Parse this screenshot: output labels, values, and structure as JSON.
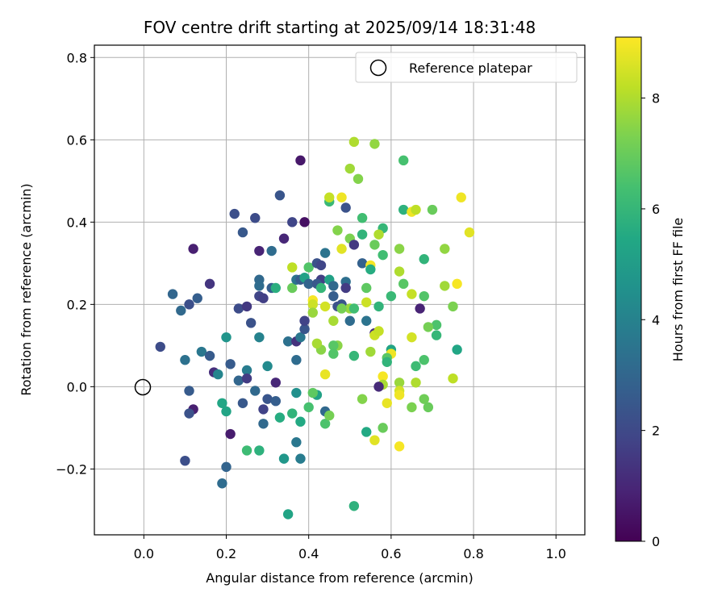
{
  "chart_data": {
    "type": "scatter",
    "title": "FOV centre drift starting at 2025/09/14 18:31:48",
    "xlabel": "Angular distance from reference (arcmin)",
    "ylabel": "Rotation from reference (arcmin)",
    "xlim": [
      -0.12,
      1.07
    ],
    "ylim": [
      -0.36,
      0.83
    ],
    "x_ticks": [
      0.0,
      0.2,
      0.4,
      0.6,
      0.8,
      1.0
    ],
    "x_tick_labels": [
      "0.0",
      "0.2",
      "0.4",
      "0.6",
      "0.8",
      "1.0"
    ],
    "y_ticks": [
      -0.2,
      0.0,
      0.2,
      0.4,
      0.6,
      0.8
    ],
    "y_tick_labels": [
      "−0.2",
      "0.0",
      "0.2",
      "0.4",
      "0.6",
      "0.8"
    ],
    "grid": true,
    "legend": {
      "placement": "top-right",
      "entries": [
        "Reference platepar"
      ]
    },
    "reference_point": {
      "x": 0.0,
      "y": 0.0,
      "label": "Reference platepar"
    },
    "colorbar": {
      "label": "Hours from first FF file",
      "range": [
        0,
        9.1
      ],
      "ticks": [
        0,
        2,
        4,
        6,
        8
      ],
      "tick_labels": [
        "0",
        "2",
        "4",
        "6",
        "8"
      ],
      "colormap": "viridis"
    },
    "points": [
      [
        0.12,
        0.335,
        0.8
      ],
      [
        0.22,
        0.42,
        2.2
      ],
      [
        0.27,
        0.41,
        2.1
      ],
      [
        0.33,
        0.465,
        2.4
      ],
      [
        0.38,
        0.55,
        0.6
      ],
      [
        0.39,
        0.4,
        0.4
      ],
      [
        0.36,
        0.4,
        1.9
      ],
      [
        0.34,
        0.36,
        1.0
      ],
      [
        0.31,
        0.33,
        3.2
      ],
      [
        0.28,
        0.33,
        0.9
      ],
      [
        0.24,
        0.375,
        2.5
      ],
      [
        0.16,
        0.25,
        1.4
      ],
      [
        0.07,
        0.225,
        3.0
      ],
      [
        0.13,
        0.215,
        2.7
      ],
      [
        0.11,
        0.2,
        2.2
      ],
      [
        0.09,
        0.185,
        3.1
      ],
      [
        0.04,
        0.097,
        2.1
      ],
      [
        0.1,
        0.065,
        3.4
      ],
      [
        0.14,
        0.085,
        3.6
      ],
      [
        0.16,
        0.075,
        2.6
      ],
      [
        0.2,
        0.12,
        4.7
      ],
      [
        0.21,
        0.055,
        2.6
      ],
      [
        0.17,
        0.035,
        1.2
      ],
      [
        0.18,
        0.03,
        4.1
      ],
      [
        0.11,
        -0.01,
        2.6
      ],
      [
        0.12,
        -0.055,
        0.8
      ],
      [
        0.11,
        -0.065,
        2.3
      ],
      [
        0.1,
        -0.18,
        2.2
      ],
      [
        0.2,
        -0.195,
        2.9
      ],
      [
        0.19,
        -0.235,
        3.2
      ],
      [
        0.21,
        -0.115,
        0.7
      ],
      [
        0.19,
        -0.04,
        5.4
      ],
      [
        0.2,
        -0.06,
        5.3
      ],
      [
        0.24,
        -0.04,
        2.5
      ],
      [
        0.23,
        0.015,
        3.0
      ],
      [
        0.25,
        0.04,
        3.8
      ],
      [
        0.25,
        0.02,
        1.6
      ],
      [
        0.27,
        -0.01,
        3.1
      ],
      [
        0.28,
        -0.155,
        5.8
      ],
      [
        0.25,
        -0.155,
        6.2
      ],
      [
        0.29,
        -0.055,
        1.8
      ],
      [
        0.29,
        -0.09,
        3.1
      ],
      [
        0.3,
        -0.03,
        2.4
      ],
      [
        0.3,
        0.05,
        4.3
      ],
      [
        0.32,
        0.01,
        1.0
      ],
      [
        0.32,
        -0.035,
        2.7
      ],
      [
        0.33,
        -0.075,
        5.6
      ],
      [
        0.34,
        -0.175,
        4.8
      ],
      [
        0.35,
        -0.31,
        5.3
      ],
      [
        0.36,
        -0.065,
        5.9
      ],
      [
        0.37,
        -0.015,
        4.5
      ],
      [
        0.38,
        -0.085,
        5.5
      ],
      [
        0.37,
        -0.135,
        3.6
      ],
      [
        0.38,
        -0.175,
        3.8
      ],
      [
        0.4,
        -0.05,
        6.4
      ],
      [
        0.42,
        -0.02,
        5.2
      ],
      [
        0.41,
        -0.015,
        6.8
      ],
      [
        0.44,
        -0.06,
        3.1
      ],
      [
        0.44,
        -0.09,
        6.5
      ],
      [
        0.45,
        -0.07,
        7.2
      ],
      [
        0.23,
        0.19,
        2.1
      ],
      [
        0.25,
        0.195,
        1.5
      ],
      [
        0.28,
        0.26,
        3.1
      ],
      [
        0.28,
        0.245,
        3.2
      ],
      [
        0.28,
        0.22,
        1.9
      ],
      [
        0.29,
        0.215,
        1.7
      ],
      [
        0.31,
        0.24,
        2.7
      ],
      [
        0.32,
        0.24,
        5.7
      ],
      [
        0.28,
        0.12,
        4.0
      ],
      [
        0.26,
        0.155,
        2.3
      ],
      [
        0.35,
        0.11,
        3.4
      ],
      [
        0.37,
        0.11,
        1.3
      ],
      [
        0.37,
        0.065,
        3.2
      ],
      [
        0.38,
        0.12,
        3.6
      ],
      [
        0.39,
        0.14,
        2.4
      ],
      [
        0.39,
        0.16,
        1.8
      ],
      [
        0.36,
        0.24,
        7.0
      ],
      [
        0.37,
        0.26,
        3.5
      ],
      [
        0.38,
        0.26,
        2.6
      ],
      [
        0.39,
        0.265,
        5.2
      ],
      [
        0.4,
        0.25,
        2.9
      ],
      [
        0.4,
        0.29,
        6.6
      ],
      [
        0.42,
        0.3,
        2.3
      ],
      [
        0.43,
        0.295,
        1.9
      ],
      [
        0.44,
        0.325,
        3.5
      ],
      [
        0.43,
        0.26,
        1.7
      ],
      [
        0.42,
        0.25,
        2.5
      ],
      [
        0.43,
        0.24,
        6.0
      ],
      [
        0.45,
        0.26,
        5.2
      ],
      [
        0.46,
        0.245,
        3.1
      ],
      [
        0.46,
        0.22,
        2.7
      ],
      [
        0.48,
        0.2,
        2.4
      ],
      [
        0.49,
        0.255,
        3.3
      ],
      [
        0.49,
        0.24,
        1.6
      ],
      [
        0.47,
        0.195,
        2.3
      ],
      [
        0.44,
        0.195,
        8.5
      ],
      [
        0.46,
        0.16,
        7.9
      ],
      [
        0.5,
        0.16,
        3.2
      ],
      [
        0.47,
        0.1,
        7.5
      ],
      [
        0.46,
        0.1,
        6.7
      ],
      [
        0.46,
        0.08,
        6.6
      ],
      [
        0.44,
        0.03,
        8.8
      ],
      [
        0.43,
        0.09,
        7.5
      ],
      [
        0.42,
        0.105,
        7.9
      ],
      [
        0.41,
        0.21,
        9.0
      ],
      [
        0.41,
        0.2,
        8.4
      ],
      [
        0.41,
        0.18,
        7.7
      ],
      [
        0.36,
        0.29,
        8.2
      ],
      [
        0.45,
        0.45,
        6.1
      ],
      [
        0.45,
        0.46,
        8.3
      ],
      [
        0.48,
        0.46,
        8.9
      ],
      [
        0.49,
        0.435,
        2.3
      ],
      [
        0.5,
        0.53,
        7.8
      ],
      [
        0.51,
        0.595,
        8.0
      ],
      [
        0.52,
        0.505,
        7.4
      ],
      [
        0.56,
        0.59,
        7.6
      ],
      [
        0.63,
        0.55,
        6.4
      ],
      [
        0.63,
        0.43,
        5.8
      ],
      [
        0.65,
        0.425,
        8.9
      ],
      [
        0.66,
        0.43,
        8.2
      ],
      [
        0.7,
        0.43,
        7.0
      ],
      [
        0.77,
        0.46,
        8.9
      ],
      [
        0.79,
        0.375,
        8.7
      ],
      [
        0.73,
        0.335,
        7.6
      ],
      [
        0.68,
        0.31,
        5.9
      ],
      [
        0.62,
        0.335,
        7.5
      ],
      [
        0.62,
        0.28,
        8.0
      ],
      [
        0.58,
        0.385,
        6.0
      ],
      [
        0.57,
        0.37,
        8.0
      ],
      [
        0.56,
        0.345,
        7.0
      ],
      [
        0.53,
        0.41,
        6.3
      ],
      [
        0.53,
        0.37,
        5.9
      ],
      [
        0.5,
        0.36,
        7.3
      ],
      [
        0.47,
        0.38,
        7.4
      ],
      [
        0.48,
        0.335,
        8.7
      ],
      [
        0.51,
        0.345,
        1.5
      ],
      [
        0.53,
        0.3,
        2.8
      ],
      [
        0.55,
        0.295,
        9.0
      ],
      [
        0.55,
        0.285,
        5.6
      ],
      [
        0.58,
        0.32,
        6.3
      ],
      [
        0.54,
        0.24,
        6.8
      ],
      [
        0.5,
        0.19,
        7.7
      ],
      [
        0.48,
        0.19,
        7.2
      ],
      [
        0.51,
        0.19,
        6.3
      ],
      [
        0.54,
        0.205,
        8.4
      ],
      [
        0.57,
        0.195,
        5.9
      ],
      [
        0.6,
        0.22,
        6.1
      ],
      [
        0.63,
        0.25,
        6.7
      ],
      [
        0.65,
        0.225,
        8.3
      ],
      [
        0.68,
        0.22,
        6.6
      ],
      [
        0.67,
        0.19,
        0.9
      ],
      [
        0.73,
        0.245,
        7.8
      ],
      [
        0.76,
        0.25,
        9.0
      ],
      [
        0.75,
        0.195,
        7.3
      ],
      [
        0.71,
        0.15,
        6.5
      ],
      [
        0.69,
        0.145,
        7.2
      ],
      [
        0.71,
        0.125,
        6.0
      ],
      [
        0.65,
        0.12,
        8.5
      ],
      [
        0.56,
        0.13,
        1.2
      ],
      [
        0.56,
        0.125,
        8.4
      ],
      [
        0.57,
        0.135,
        8.3
      ],
      [
        0.54,
        0.16,
        3.5
      ],
      [
        0.6,
        0.09,
        5.3
      ],
      [
        0.6,
        0.08,
        8.9
      ],
      [
        0.59,
        0.07,
        6.7
      ],
      [
        0.59,
        0.06,
        5.9
      ],
      [
        0.51,
        0.075,
        6.0
      ],
      [
        0.55,
        0.085,
        7.8
      ],
      [
        0.58,
        0.025,
        9.0
      ],
      [
        0.58,
        0.005,
        7.9
      ],
      [
        0.57,
        0.0,
        1.1
      ],
      [
        0.62,
        0.01,
        7.7
      ],
      [
        0.62,
        -0.01,
        8.5
      ],
      [
        0.62,
        -0.02,
        8.9
      ],
      [
        0.59,
        -0.04,
        8.8
      ],
      [
        0.65,
        -0.05,
        7.3
      ],
      [
        0.68,
        -0.03,
        7.1
      ],
      [
        0.69,
        -0.05,
        7.0
      ],
      [
        0.66,
        0.05,
        6.2
      ],
      [
        0.68,
        0.065,
        6.5
      ],
      [
        0.66,
        0.01,
        8.0
      ],
      [
        0.75,
        0.02,
        8.2
      ],
      [
        0.76,
        0.09,
        5.4
      ],
      [
        0.53,
        -0.03,
        7.4
      ],
      [
        0.54,
        -0.11,
        5.5
      ],
      [
        0.56,
        -0.13,
        8.7
      ],
      [
        0.58,
        -0.1,
        7.0
      ],
      [
        0.62,
        -0.145,
        9.0
      ],
      [
        0.51,
        -0.29,
        5.8
      ]
    ]
  }
}
